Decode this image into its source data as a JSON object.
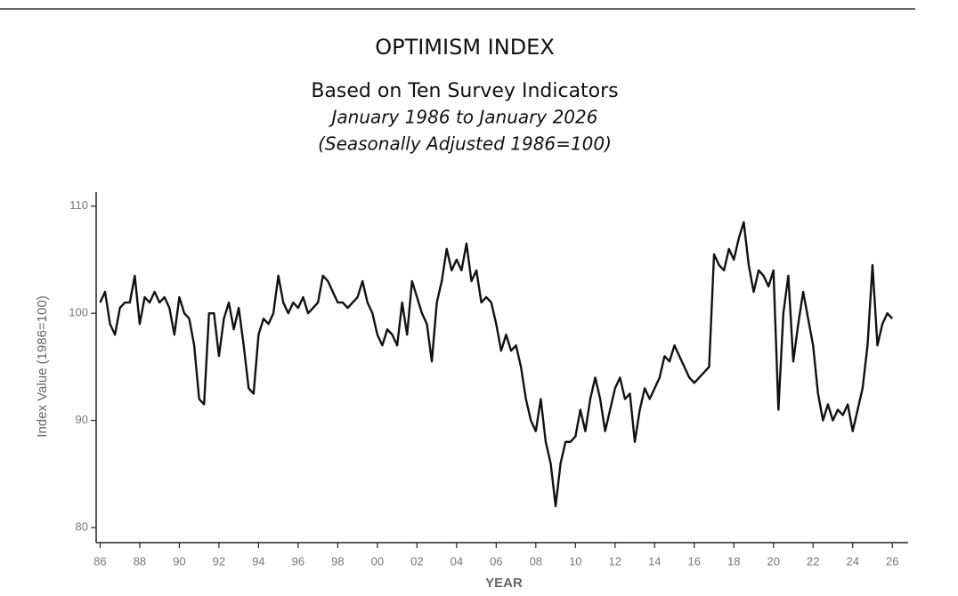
{
  "chart_data": {
    "type": "line",
    "title": "OPTIMISM INDEX",
    "subtitle": "Based on Ten Survey Indicators",
    "subtitle_lines": [
      "January 1986 to January 2026",
      "(Seasonally Adjusted 1986=100)"
    ],
    "x_label": "YEAR",
    "y_label": "Index Value (1986=100)",
    "xlim": [
      1985.8,
      2026.8
    ],
    "ylim": [
      78.6,
      111.3
    ],
    "yticks": [
      80,
      90,
      100,
      110
    ],
    "xticks": [
      {
        "value": 1986,
        "label": "86"
      },
      {
        "value": 1988,
        "label": "88"
      },
      {
        "value": 1990,
        "label": "90"
      },
      {
        "value": 1992,
        "label": "92"
      },
      {
        "value": 1994,
        "label": "94"
      },
      {
        "value": 1996,
        "label": "96"
      },
      {
        "value": 1998,
        "label": "98"
      },
      {
        "value": 2000,
        "label": "00"
      },
      {
        "value": 2002,
        "label": "02"
      },
      {
        "value": 2004,
        "label": "04"
      },
      {
        "value": 2006,
        "label": "06"
      },
      {
        "value": 2008,
        "label": "08"
      },
      {
        "value": 2010,
        "label": "10"
      },
      {
        "value": 2012,
        "label": "12"
      },
      {
        "value": 2014,
        "label": "14"
      },
      {
        "value": 2016,
        "label": "16"
      },
      {
        "value": 2018,
        "label": "18"
      },
      {
        "value": 2020,
        "label": "20"
      },
      {
        "value": 2022,
        "label": "22"
      },
      {
        "value": 2024,
        "label": "24"
      },
      {
        "value": 2026,
        "label": "26"
      }
    ],
    "grid": false,
    "x": [
      1986,
      1986.25,
      1986.5,
      1986.75,
      1987,
      1987.25,
      1987.5,
      1987.75,
      1988,
      1988.25,
      1988.5,
      1988.75,
      1989,
      1989.25,
      1989.5,
      1989.75,
      1990,
      1990.25,
      1990.5,
      1990.75,
      1991,
      1991.25,
      1991.5,
      1991.75,
      1992,
      1992.25,
      1992.5,
      1992.75,
      1993,
      1993.25,
      1993.5,
      1993.75,
      1994,
      1994.25,
      1994.5,
      1994.75,
      1995,
      1995.25,
      1995.5,
      1995.75,
      1996,
      1996.25,
      1996.5,
      1996.75,
      1997,
      1997.25,
      1997.5,
      1997.75,
      1998,
      1998.25,
      1998.5,
      1998.75,
      1999,
      1999.25,
      1999.5,
      1999.75,
      2000,
      2000.25,
      2000.5,
      2000.75,
      2001,
      2001.25,
      2001.5,
      2001.75,
      2002,
      2002.25,
      2002.5,
      2002.75,
      2003,
      2003.25,
      2003.5,
      2003.75,
      2004,
      2004.25,
      2004.5,
      2004.75,
      2005,
      2005.25,
      2005.5,
      2005.75,
      2006,
      2006.25,
      2006.5,
      2006.75,
      2007,
      2007.25,
      2007.5,
      2007.75,
      2008,
      2008.25,
      2008.5,
      2008.75,
      2009,
      2009.25,
      2009.5,
      2009.75,
      2010,
      2010.25,
      2010.5,
      2010.75,
      2011,
      2011.25,
      2011.5,
      2011.75,
      2012,
      2012.25,
      2012.5,
      2012.75,
      2013,
      2013.25,
      2013.5,
      2013.75,
      2014,
      2014.25,
      2014.5,
      2014.75,
      2015,
      2015.25,
      2015.5,
      2015.75,
      2016,
      2016.25,
      2016.5,
      2016.75,
      2017,
      2017.25,
      2017.5,
      2017.75,
      2018,
      2018.25,
      2018.5,
      2018.75,
      2019,
      2019.25,
      2019.5,
      2019.75,
      2020,
      2020.25,
      2020.5,
      2020.75,
      2021,
      2021.25,
      2021.5,
      2021.75,
      2022,
      2022.25,
      2022.5,
      2022.75,
      2023,
      2023.25,
      2023.5,
      2023.75,
      2024,
      2024.25,
      2024.5,
      2024.75,
      2025,
      2025.25,
      2025.5,
      2025.75,
      2026
    ],
    "series": [
      {
        "name": "Optimism Index",
        "color": "#111111",
        "values": [
          101,
          102,
          99,
          98,
          100.5,
          101,
          101,
          103.5,
          99,
          101.5,
          101,
          102,
          101,
          101.5,
          100.5,
          98,
          101.5,
          100,
          99.5,
          97,
          92,
          91.5,
          100,
          100,
          96,
          99.5,
          101,
          98.5,
          100.5,
          97,
          93,
          92.5,
          98,
          99.5,
          99,
          100,
          103.5,
          101,
          100,
          101,
          100.5,
          101.5,
          100,
          100.5,
          101,
          103.5,
          103,
          102,
          101,
          101,
          100.5,
          101,
          101.5,
          103,
          101,
          100,
          98,
          97,
          98.5,
          98,
          97,
          101,
          98,
          103,
          101.5,
          100,
          99,
          95.5,
          101,
          103,
          106,
          104,
          105,
          104,
          106.5,
          103,
          104,
          101,
          101.5,
          101,
          99,
          96.5,
          98,
          96.5,
          97,
          95,
          92,
          90,
          89,
          92,
          88,
          86,
          82,
          86,
          88,
          88,
          88.5,
          91,
          89,
          92,
          94,
          92,
          89,
          91,
          93,
          94,
          92,
          92.5,
          88,
          91,
          93,
          92,
          93,
          94,
          96,
          95.5,
          97,
          96,
          95,
          94,
          93.5,
          94,
          94.5,
          95,
          105.5,
          104.5,
          104,
          106,
          105,
          107,
          108.5,
          104.5,
          102,
          104,
          103.5,
          102.5,
          104,
          91,
          100,
          103.5,
          95.5,
          99,
          102,
          99.5,
          97,
          92.5,
          90,
          91.5,
          90,
          91,
          90.5,
          91.5,
          89,
          91,
          93,
          97,
          104.5,
          97,
          99,
          100,
          99.5
        ]
      }
    ]
  }
}
